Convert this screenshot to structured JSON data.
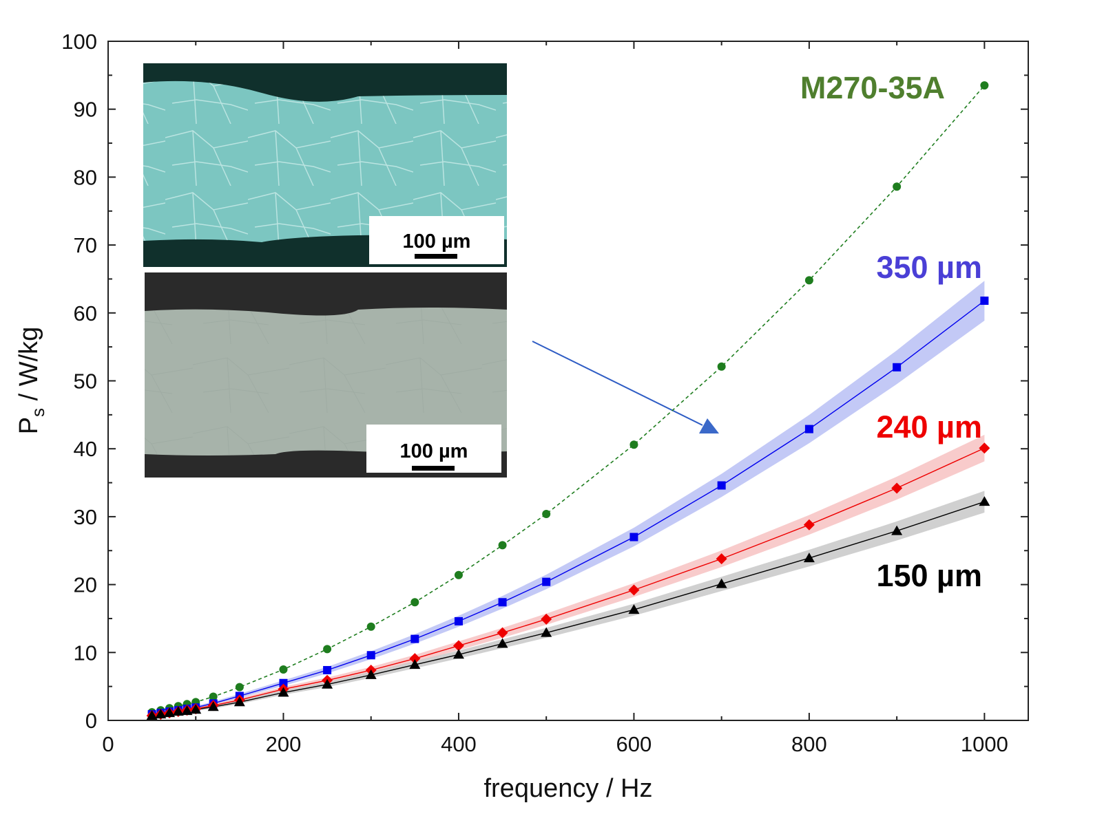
{
  "chart_data": {
    "type": "line",
    "title": "",
    "xlabel": "frequency / Hz",
    "ylabel_main": "P",
    "ylabel_sub": "s",
    "ylabel_rest": " / W/kg",
    "xlim": [
      0,
      1050
    ],
    "ylim": [
      0,
      100
    ],
    "x_ticks": [
      0,
      200,
      400,
      600,
      800,
      1000
    ],
    "y_ticks": [
      0,
      10,
      20,
      30,
      40,
      50,
      60,
      70,
      80,
      90,
      100
    ],
    "grid": false,
    "legend": "none; series labeled directly at right",
    "x": [
      50,
      60,
      70,
      80,
      90,
      100,
      120,
      150,
      200,
      250,
      300,
      350,
      400,
      450,
      500,
      600,
      700,
      800,
      900,
      1000
    ],
    "series": [
      {
        "name": "M270-35A",
        "color": "#1e7d1e",
        "label_color": "#4f7f2e",
        "marker": "circle",
        "line": "dashed",
        "band": false,
        "values": [
          1.2,
          1.5,
          1.8,
          2.1,
          2.4,
          2.7,
          3.5,
          4.9,
          7.5,
          10.5,
          13.8,
          17.4,
          21.4,
          25.8,
          30.4,
          40.6,
          52.1,
          64.8,
          78.6,
          93.5
        ]
      },
      {
        "name": "350 µm",
        "color": "#0000ee",
        "label_color": "#4a3fd6",
        "band_color": "#b8bff5",
        "marker": "square",
        "line": "solid",
        "band": true,
        "values": [
          0.9,
          1.1,
          1.3,
          1.5,
          1.7,
          1.9,
          2.5,
          3.6,
          5.5,
          7.4,
          9.6,
          12.0,
          14.6,
          17.4,
          20.4,
          27.0,
          34.6,
          42.9,
          52.0,
          61.8
        ]
      },
      {
        "name": "240 µm",
        "color": "#ee0000",
        "label_color": "#ee0000",
        "band_color": "#f7c2c2",
        "marker": "diamond",
        "line": "solid",
        "band": true,
        "values": [
          0.7,
          0.9,
          1.1,
          1.3,
          1.5,
          1.7,
          2.2,
          3.0,
          4.6,
          5.9,
          7.4,
          9.1,
          11.0,
          12.9,
          14.9,
          19.2,
          23.8,
          28.8,
          34.2,
          40.1
        ]
      },
      {
        "name": "150 µm",
        "color": "#000000",
        "label_color": "#000000",
        "band_color": "#c8c8c8",
        "marker": "triangle",
        "line": "solid",
        "band": true,
        "values": [
          0.7,
          0.9,
          1.1,
          1.3,
          1.4,
          1.6,
          2.0,
          2.7,
          4.1,
          5.3,
          6.7,
          8.2,
          9.7,
          11.3,
          12.9,
          16.3,
          20.1,
          23.9,
          27.9,
          32.2
        ]
      }
    ],
    "insets": [
      {
        "scale_bar_label": "100 µm",
        "tone": "cyan micrograph"
      },
      {
        "scale_bar_label": "100 µm",
        "tone": "grey micrograph"
      }
    ]
  }
}
